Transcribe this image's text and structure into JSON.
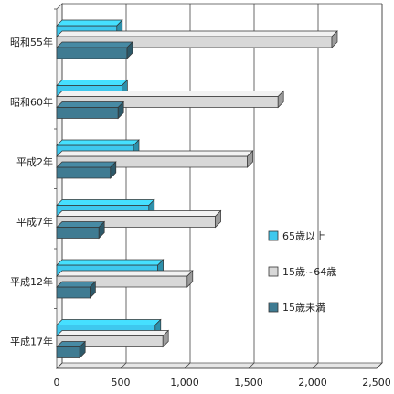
{
  "chart_data": {
    "type": "bar",
    "orientation": "horizontal",
    "categories": [
      "昭和55年",
      "昭和60年",
      "平成2年",
      "平成7年",
      "平成12年",
      "平成17年"
    ],
    "series": [
      {
        "name": "65歳以上",
        "values": [
          470,
          510,
          600,
          720,
          790,
          770
        ],
        "color": "#3ec8ee"
      },
      {
        "name": "15歳~64歳",
        "values": [
          2150,
          1730,
          1490,
          1240,
          1020,
          830
        ],
        "color": "#d8d8d8"
      },
      {
        "name": "15歳未満",
        "values": [
          550,
          480,
          420,
          330,
          260,
          180
        ],
        "color": "#3f7b92"
      }
    ],
    "xlim": [
      0,
      2500
    ],
    "xticks": [
      0,
      500,
      1000,
      1500,
      2000,
      2500
    ],
    "xtick_labels": [
      "0",
      "500",
      "1,000",
      "1,500",
      "2,000",
      "2,500"
    ],
    "grid": true,
    "legend_position": "right-bottom"
  }
}
